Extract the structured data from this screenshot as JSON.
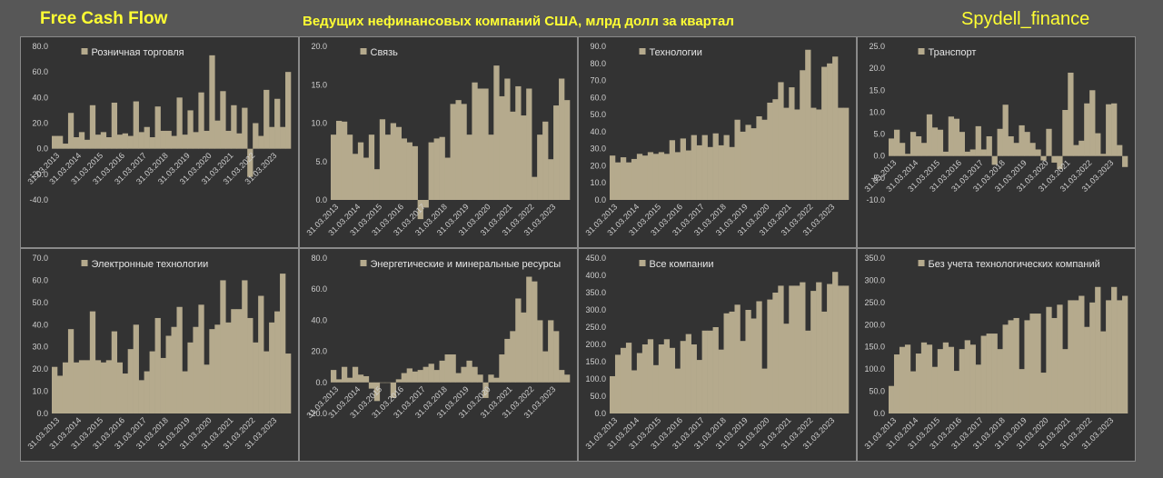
{
  "header": {
    "left_title": "Free Cash Flow",
    "center_title": "Ведущих нефинансовых компаний США, млрд долл за квартал",
    "right_title": "Spydell_finance"
  },
  "colors": {
    "background": "#575757",
    "panel": "#333333",
    "bar": "#b5aa8d",
    "header_text": "#ffff33"
  },
  "chart_data": [
    {
      "type": "bar",
      "legend": "Розничная торговля",
      "ylim": [
        -40,
        80
      ],
      "yticks": [
        -40,
        -20,
        0,
        20,
        40,
        60,
        80
      ],
      "tick_decimals": 1,
      "x_labels": [
        "31.03.2013",
        "31.03.2014",
        "31.03.2015",
        "31.03.2016",
        "31.03.2017",
        "31.03.2018",
        "31.03.2019",
        "31.03.2020",
        "31.03.2021",
        "31.03.2022",
        "31.03.2023"
      ],
      "values": [
        10,
        10,
        4,
        28,
        9,
        13,
        7,
        34,
        11,
        13,
        9,
        36,
        11,
        12,
        10,
        37,
        13,
        17,
        9,
        33,
        14,
        14,
        10,
        40,
        11,
        30,
        13,
        44,
        14,
        73,
        22,
        45,
        14,
        34,
        12,
        32,
        -22,
        20,
        10,
        46,
        17,
        39,
        17,
        60
      ]
    },
    {
      "type": "bar",
      "legend": "Связь",
      "ylim": [
        0,
        20
      ],
      "yticks": [
        0,
        5,
        10,
        15,
        20
      ],
      "tick_decimals": 1,
      "x_labels": [
        "31.03.2013",
        "31.03.2014",
        "31.03.2015",
        "31.03.2016",
        "31.03.2017",
        "31.03.2018",
        "31.03.2019",
        "31.03.2020",
        "31.03.2021",
        "31.03.2022",
        "31.03.2023"
      ],
      "values": [
        8.5,
        10.3,
        10.2,
        8.5,
        6,
        7.5,
        5.5,
        8.5,
        4,
        10.5,
        8.5,
        10,
        9.5,
        8,
        7.5,
        7,
        -2.5,
        -1,
        7.5,
        8,
        8.2,
        5.5,
        12.5,
        13,
        12.5,
        8.5,
        15.3,
        14.5,
        14.5,
        8.5,
        17.5,
        13.5,
        15.8,
        11.5,
        14.8,
        11,
        14.5,
        3,
        8.5,
        10.2,
        5.3,
        12.3,
        15.8,
        13
      ]
    },
    {
      "type": "bar",
      "legend": "Технологии",
      "ylim": [
        0,
        90
      ],
      "yticks": [
        0,
        10,
        20,
        30,
        40,
        50,
        60,
        70,
        80,
        90
      ],
      "tick_decimals": 1,
      "x_labels": [
        "31.03.2013",
        "31.03.2014",
        "31.03.2015",
        "31.03.2016",
        "31.03.2017",
        "31.03.2018",
        "31.03.2019",
        "31.03.2020",
        "31.03.2021",
        "31.03.2022",
        "31.03.2023"
      ],
      "values": [
        26,
        22,
        25,
        22,
        24,
        27,
        26,
        28,
        27,
        28,
        27,
        35,
        28,
        36,
        29,
        38,
        32,
        38,
        31,
        39,
        32,
        38,
        31,
        47,
        40,
        44,
        42,
        49,
        47,
        57,
        59,
        69,
        54,
        66,
        53,
        76,
        88,
        54,
        53,
        78,
        80,
        84,
        54,
        54
      ]
    },
    {
      "type": "bar",
      "legend": "Транспорт",
      "ylim": [
        -10,
        25
      ],
      "yticks": [
        -10,
        -5,
        0,
        5,
        10,
        15,
        20,
        25
      ],
      "tick_decimals": 1,
      "x_labels": [
        "31.03.2013",
        "31.03.2014",
        "31.03.2015",
        "31.03.2016",
        "31.03.2017",
        "31.03.2018",
        "31.03.2019",
        "31.03.2020",
        "31.03.2021",
        "31.03.2022",
        "31.03.2023"
      ],
      "values": [
        4,
        6,
        3,
        0.5,
        5.5,
        4.5,
        3,
        9.5,
        6.5,
        6,
        1,
        9,
        8.5,
        5.5,
        1,
        1.5,
        6.8,
        1.5,
        4.5,
        -2,
        6.2,
        11.7,
        4.5,
        3,
        7,
        5.5,
        3,
        1.5,
        -1,
        6.2,
        -1.5,
        -3,
        10.5,
        19,
        2.5,
        3.5,
        12,
        15,
        5.2,
        0.5,
        11.8,
        12,
        2.5,
        -2.5
      ]
    },
    {
      "type": "bar",
      "legend": "Электронные технологии",
      "ylim": [
        0,
        70
      ],
      "yticks": [
        0,
        10,
        20,
        30,
        40,
        50,
        60,
        70
      ],
      "tick_decimals": 1,
      "x_labels": [
        "31.03.2013",
        "31.03.2014",
        "31.03.2015",
        "31.03.2016",
        "31.03.2017",
        "31.03.2018",
        "31.03.2019",
        "31.03.2020",
        "31.03.2021",
        "31.03.2022",
        "31.03.2023"
      ],
      "values": [
        21,
        17,
        23,
        38,
        23,
        24,
        24,
        46,
        24,
        23,
        24,
        37,
        23,
        18,
        29,
        40,
        15,
        19,
        28,
        43,
        25,
        35,
        39,
        48,
        19,
        32,
        39,
        49,
        22,
        38,
        40,
        60,
        41,
        47,
        47,
        60,
        43,
        32,
        53,
        28,
        41,
        46,
        63,
        27
      ]
    },
    {
      "type": "bar",
      "legend": "Энергетические и минеральные ресурсы",
      "ylim": [
        -20,
        80
      ],
      "yticks": [
        -20,
        0,
        20,
        40,
        60,
        80
      ],
      "tick_decimals": 1,
      "x_labels": [
        "31.03.2013",
        "31.03.2014",
        "31.03.2015",
        "31.03.2016",
        "31.03.2017",
        "31.03.2018",
        "31.03.2019",
        "31.03.2020",
        "31.03.2021",
        "31.03.2022",
        "31.03.2023"
      ],
      "values": [
        8,
        2,
        10,
        3,
        10,
        5,
        4,
        -4,
        -12,
        0,
        0,
        -10,
        2,
        6,
        9,
        7,
        8,
        10,
        12,
        8,
        14,
        18,
        18,
        6,
        10,
        14,
        10,
        5,
        -10,
        5,
        3,
        18,
        28,
        33,
        54,
        45,
        68,
        65,
        40,
        20,
        40,
        33,
        8,
        5
      ]
    },
    {
      "type": "bar",
      "legend": "Все компании",
      "ylim": [
        0,
        450
      ],
      "yticks": [
        0,
        50,
        100,
        150,
        200,
        250,
        300,
        350,
        400,
        450
      ],
      "tick_decimals": 1,
      "x_labels": [
        "31.03.2013",
        "31.03.2014",
        "31.03.2015",
        "31.03.2016",
        "31.03.2017",
        "31.03.2018",
        "31.03.2019",
        "31.03.2020",
        "31.03.2021",
        "31.03.2022",
        "31.03.2023"
      ],
      "values": [
        108,
        170,
        190,
        205,
        125,
        175,
        200,
        215,
        140,
        200,
        215,
        190,
        130,
        210,
        230,
        200,
        155,
        240,
        240,
        250,
        185,
        290,
        295,
        315,
        210,
        300,
        275,
        325,
        130,
        330,
        350,
        370,
        260,
        370,
        370,
        380,
        240,
        355,
        380,
        295,
        375,
        410,
        370,
        370
      ]
    },
    {
      "type": "bar",
      "legend": "Без учета технологических компаний",
      "ylim": [
        0,
        350
      ],
      "yticks": [
        0,
        50,
        100,
        150,
        200,
        250,
        300,
        350
      ],
      "tick_decimals": 1,
      "x_labels": [
        "31.03.2013",
        "31.03.2014",
        "31.03.2015",
        "31.03.2016",
        "31.03.2017",
        "31.03.2018",
        "31.03.2019",
        "31.03.2020",
        "31.03.2021",
        "31.03.2022",
        "31.03.2023"
      ],
      "values": [
        62,
        133,
        150,
        155,
        95,
        135,
        160,
        155,
        105,
        145,
        160,
        150,
        96,
        145,
        165,
        155,
        110,
        175,
        180,
        180,
        145,
        200,
        210,
        215,
        100,
        210,
        225,
        225,
        92,
        240,
        215,
        245,
        145,
        255,
        255,
        265,
        195,
        250,
        285,
        185,
        255,
        285,
        255,
        265
      ]
    }
  ]
}
